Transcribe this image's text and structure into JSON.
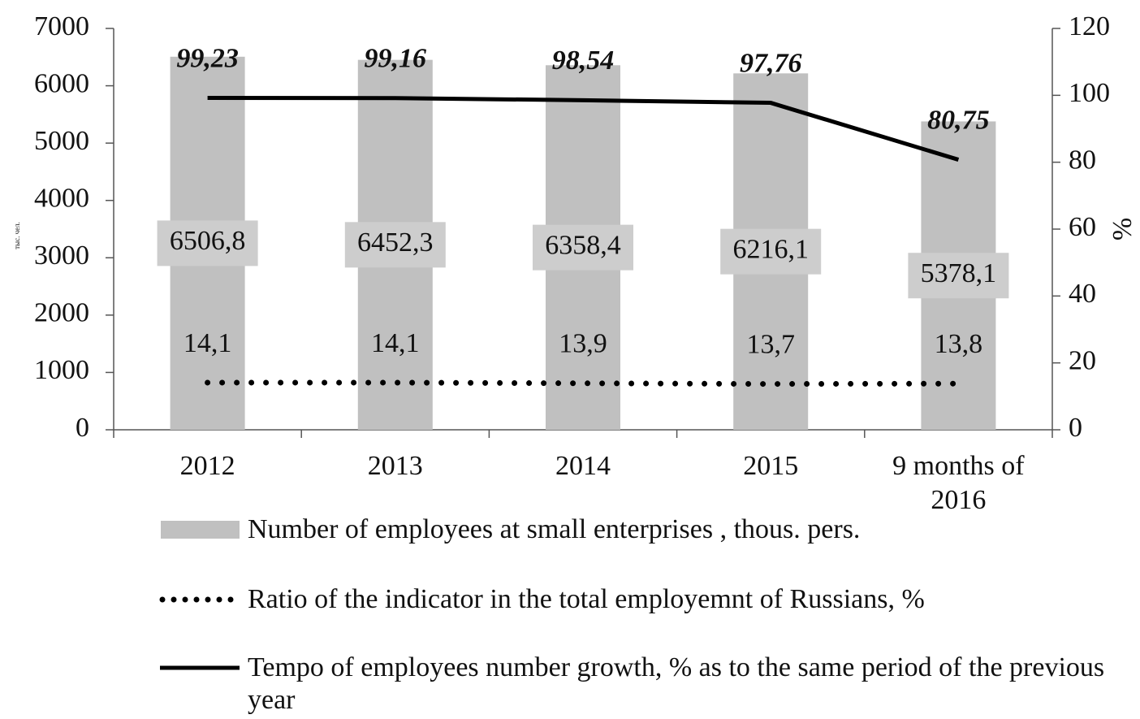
{
  "chart_data": {
    "type": "bar",
    "ylabel": "тыс. чел.",
    "y2label": "%",
    "categories": [
      "2012",
      "2013",
      "2014",
      "2015",
      "9 months of 2016"
    ],
    "series": [
      {
        "name": "Number of employees at small enterprises , thous. pers.",
        "type": "bar",
        "color": "#c0c0c0",
        "values": [
          6506.8,
          6452.3,
          6358.4,
          6216.1,
          5378.1
        ],
        "value_labels": [
          "6506,8",
          "6452,3",
          "6358,4",
          "6216,1",
          "5378,1"
        ]
      },
      {
        "name": "Ratio of the indicator in the total employemnt of Russians, %",
        "type": "line",
        "style": "dotted",
        "color": "#000000",
        "axis": "y2",
        "values": [
          14.1,
          14.1,
          13.9,
          13.7,
          13.8
        ],
        "value_labels": [
          "14,1",
          "14,1",
          "13,9",
          "13,7",
          "13,8"
        ]
      },
      {
        "name": "Tempo of employees number growth, % as to the same period of the previous year",
        "type": "line",
        "style": "solid",
        "color": "#000000",
        "axis": "y2",
        "values": [
          99.23,
          99.16,
          98.54,
          97.76,
          80.75
        ],
        "value_labels": [
          "99,23",
          "99,16",
          "98,54",
          "97,76",
          "80,75"
        ]
      }
    ],
    "ylim": [
      0,
      7000
    ],
    "yticks": [
      0,
      1000,
      2000,
      3000,
      4000,
      5000,
      6000,
      7000
    ],
    "y2lim": [
      0,
      120
    ],
    "y2ticks": [
      0,
      20,
      40,
      60,
      80,
      100,
      120
    ],
    "grid": false,
    "legend": "bottom"
  }
}
